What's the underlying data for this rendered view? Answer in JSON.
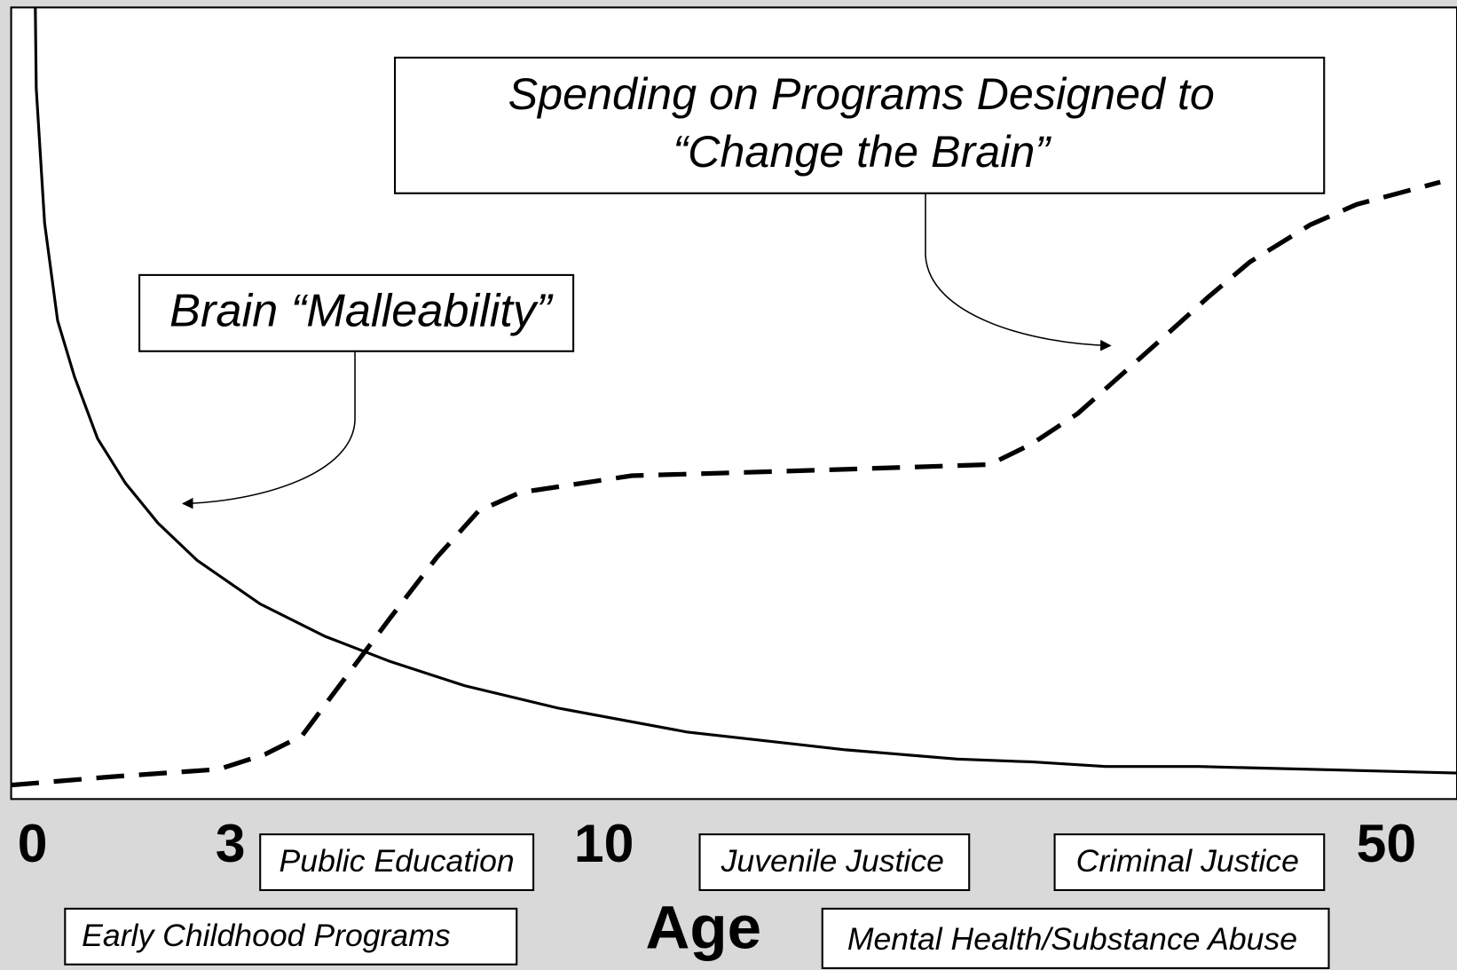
{
  "callouts": {
    "spending": {
      "lines": [
        "Spending on Programs Designed to",
        "“Change the Brain”"
      ]
    },
    "malleability": {
      "lines": [
        "Brain “Malleability”"
      ]
    }
  },
  "axis": {
    "ticks": [
      0,
      3,
      10,
      50
    ],
    "label": "Age"
  },
  "programs": [
    "Public Education",
    "Juvenile Justice",
    "Criminal Justice",
    "Early Childhood Programs",
    "Mental Health/Substance Abuse"
  ]
}
